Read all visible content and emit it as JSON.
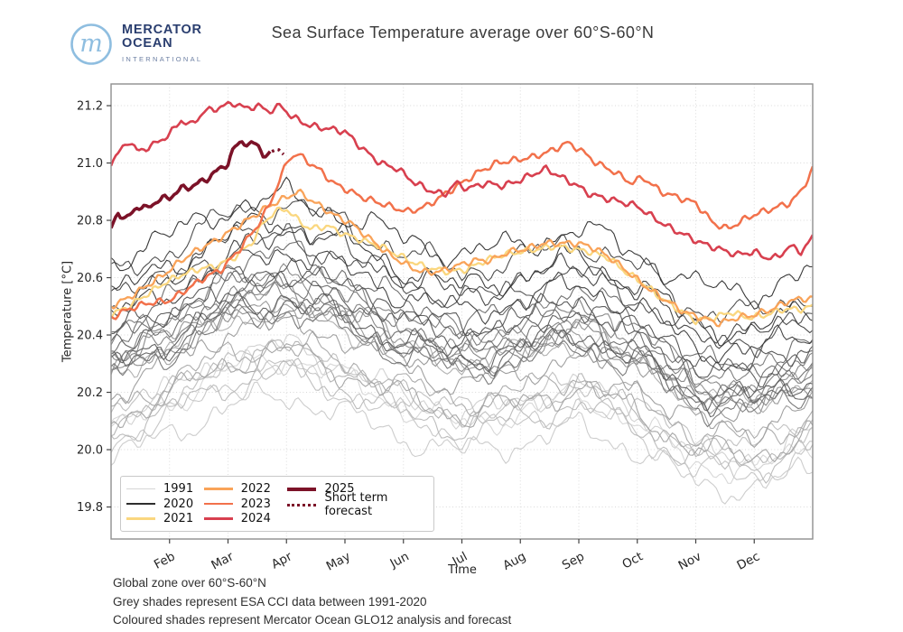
{
  "header": {
    "title": "Sea Surface Temperature average over 60°S-60°N"
  },
  "logo": {
    "line1": "MERCATOR",
    "line2": "OCEAN",
    "line3": "INTERNATIONAL",
    "mark": "m",
    "circle_color": "#8FBEE0",
    "text_color": "#2A3E6F",
    "subtext_color": "#6C7FA3"
  },
  "footer": {
    "lines": [
      "Global zone over 60°S-60°N",
      "Grey shades represent ESA CCI data between 1991-2020",
      "Coloured shades represent Mercator Ocean GLO12 analysis and forecast"
    ]
  },
  "chart_data": {
    "type": "line",
    "title": "Sea Surface Temperature average over 60°S-60°N",
    "xlabel": "Time",
    "ylabel": "Temperature [°C]",
    "x_tick_labels": [
      "Feb",
      "Mar",
      "Apr",
      "May",
      "Jun",
      "Jul",
      "Aug",
      "Sep",
      "Oct",
      "Nov",
      "Dec"
    ],
    "y_tick_labels": [
      "19.8",
      "20.0",
      "20.2",
      "20.4",
      "20.6",
      "20.8",
      "21.0",
      "21.2"
    ],
    "ylim": [
      19.69,
      21.28
    ],
    "x_unit": "calendar months, Jan 1 = 0, Dec 31 = 12",
    "grid": true,
    "legend_position": "lower left",
    "series": [
      {
        "name": "2021",
        "color": "#FAD77F",
        "lw": 2.3,
        "points": [
          [
            0,
            20.47
          ],
          [
            0.3,
            20.5
          ],
          [
            0.6,
            20.54
          ],
          [
            0.9,
            20.58
          ],
          [
            1.2,
            20.61
          ],
          [
            1.5,
            20.63
          ],
          [
            1.8,
            20.64
          ],
          [
            2.1,
            20.67
          ],
          [
            2.4,
            20.72
          ],
          [
            2.6,
            20.79
          ],
          [
            2.8,
            20.83
          ],
          [
            3.0,
            20.84
          ],
          [
            3.2,
            20.8
          ],
          [
            3.4,
            20.77
          ],
          [
            3.7,
            20.78
          ],
          [
            4.0,
            20.75
          ],
          [
            4.3,
            20.73
          ],
          [
            4.6,
            20.71
          ],
          [
            4.9,
            20.68
          ],
          [
            5.2,
            20.65
          ],
          [
            5.5,
            20.63
          ],
          [
            5.8,
            20.62
          ],
          [
            6.1,
            20.63
          ],
          [
            6.4,
            20.66
          ],
          [
            6.7,
            20.68
          ],
          [
            7.0,
            20.69
          ],
          [
            7.3,
            20.7
          ],
          [
            7.6,
            20.71
          ],
          [
            7.9,
            20.7
          ],
          [
            8.2,
            20.69
          ],
          [
            8.5,
            20.67
          ],
          [
            8.8,
            20.62
          ],
          [
            9.1,
            20.58
          ],
          [
            9.4,
            20.53
          ],
          [
            9.7,
            20.49
          ],
          [
            10.0,
            20.45
          ],
          [
            10.3,
            20.46
          ],
          [
            10.6,
            20.48
          ],
          [
            10.9,
            20.46
          ],
          [
            11.2,
            20.47
          ],
          [
            11.5,
            20.49
          ],
          [
            11.8,
            20.49
          ],
          [
            12,
            20.5
          ]
        ]
      },
      {
        "name": "2022",
        "color": "#F9A359",
        "lw": 2.3,
        "points": [
          [
            0,
            20.5
          ],
          [
            0.3,
            20.53
          ],
          [
            0.6,
            20.57
          ],
          [
            0.9,
            20.61
          ],
          [
            1.2,
            20.66
          ],
          [
            1.5,
            20.7
          ],
          [
            1.8,
            20.73
          ],
          [
            2.1,
            20.77
          ],
          [
            2.4,
            20.81
          ],
          [
            2.7,
            20.85
          ],
          [
            3.0,
            20.88
          ],
          [
            3.2,
            20.9
          ],
          [
            3.5,
            20.86
          ],
          [
            3.8,
            20.82
          ],
          [
            4.1,
            20.79
          ],
          [
            4.4,
            20.74
          ],
          [
            4.7,
            20.69
          ],
          [
            5.0,
            20.65
          ],
          [
            5.3,
            20.62
          ],
          [
            5.6,
            20.62
          ],
          [
            5.9,
            20.64
          ],
          [
            6.2,
            20.66
          ],
          [
            6.5,
            20.66
          ],
          [
            6.8,
            20.69
          ],
          [
            7.1,
            20.7
          ],
          [
            7.4,
            20.72
          ],
          [
            7.7,
            20.72
          ],
          [
            8.0,
            20.72
          ],
          [
            8.3,
            20.7
          ],
          [
            8.6,
            20.66
          ],
          [
            8.9,
            20.61
          ],
          [
            9.2,
            20.56
          ],
          [
            9.5,
            20.52
          ],
          [
            9.8,
            20.48
          ],
          [
            10.1,
            20.46
          ],
          [
            10.4,
            20.44
          ],
          [
            10.7,
            20.46
          ],
          [
            11.0,
            20.47
          ],
          [
            11.3,
            20.49
          ],
          [
            11.6,
            20.52
          ],
          [
            12,
            20.53
          ]
        ]
      },
      {
        "name": "2023",
        "color": "#F2714B",
        "lw": 2.5,
        "points": [
          [
            0,
            20.46
          ],
          [
            0.3,
            20.49
          ],
          [
            0.6,
            20.51
          ],
          [
            1.0,
            20.52
          ],
          [
            1.3,
            20.56
          ],
          [
            1.6,
            20.6
          ],
          [
            1.9,
            20.63
          ],
          [
            2.2,
            20.7
          ],
          [
            2.5,
            20.78
          ],
          [
            2.7,
            20.85
          ],
          [
            2.9,
            20.95
          ],
          [
            3.05,
            21.02
          ],
          [
            3.2,
            21.03
          ],
          [
            3.4,
            21.0
          ],
          [
            3.6,
            20.97
          ],
          [
            3.8,
            20.93
          ],
          [
            4.0,
            20.91
          ],
          [
            4.3,
            20.88
          ],
          [
            4.6,
            20.86
          ],
          [
            4.9,
            20.84
          ],
          [
            5.1,
            20.83
          ],
          [
            5.4,
            20.85
          ],
          [
            5.7,
            20.89
          ],
          [
            6.0,
            20.93
          ],
          [
            6.3,
            20.97
          ],
          [
            6.6,
            21.0
          ],
          [
            6.9,
            21.01
          ],
          [
            7.2,
            21.02
          ],
          [
            7.5,
            21.04
          ],
          [
            7.8,
            21.07
          ],
          [
            8.0,
            21.05
          ],
          [
            8.3,
            21.0
          ],
          [
            8.6,
            20.97
          ],
          [
            8.9,
            20.93
          ],
          [
            9.1,
            20.95
          ],
          [
            9.4,
            20.9
          ],
          [
            9.7,
            20.88
          ],
          [
            10.0,
            20.86
          ],
          [
            10.3,
            20.79
          ],
          [
            10.55,
            20.77
          ],
          [
            10.8,
            20.8
          ],
          [
            11.0,
            20.82
          ],
          [
            11.3,
            20.84
          ],
          [
            11.6,
            20.86
          ],
          [
            11.8,
            20.9
          ],
          [
            12,
            20.98
          ]
        ]
      },
      {
        "name": "2024",
        "color": "#D8404F",
        "lw": 2.6,
        "points": [
          [
            0,
            21.0
          ],
          [
            0.3,
            21.08
          ],
          [
            0.45,
            21.04
          ],
          [
            0.7,
            21.06
          ],
          [
            1,
            21.1
          ],
          [
            1.2,
            21.15
          ],
          [
            1.35,
            21.13
          ],
          [
            1.6,
            21.18
          ],
          [
            1.8,
            21.19
          ],
          [
            2.1,
            21.21
          ],
          [
            2.3,
            21.19
          ],
          [
            2.5,
            21.2
          ],
          [
            2.7,
            21.18
          ],
          [
            2.9,
            21.2
          ],
          [
            3.1,
            21.16
          ],
          [
            3.4,
            21.13
          ],
          [
            3.7,
            21.12
          ],
          [
            4.0,
            21.11
          ],
          [
            4.3,
            21.05
          ],
          [
            4.6,
            21.0
          ],
          [
            4.9,
            20.98
          ],
          [
            5.2,
            20.93
          ],
          [
            5.5,
            20.9
          ],
          [
            5.7,
            20.89
          ],
          [
            5.9,
            20.93
          ],
          [
            6.1,
            20.91
          ],
          [
            6.4,
            20.93
          ],
          [
            6.7,
            20.92
          ],
          [
            7.0,
            20.94
          ],
          [
            7.2,
            20.96
          ],
          [
            7.45,
            20.98
          ],
          [
            7.7,
            20.95
          ],
          [
            7.9,
            20.93
          ],
          [
            8.2,
            20.89
          ],
          [
            8.6,
            20.87
          ],
          [
            9.0,
            20.85
          ],
          [
            9.2,
            20.82
          ],
          [
            9.5,
            20.78
          ],
          [
            9.8,
            20.75
          ],
          [
            10.1,
            20.72
          ],
          [
            10.4,
            20.7
          ],
          [
            10.7,
            20.68
          ],
          [
            11.0,
            20.69
          ],
          [
            11.2,
            20.67
          ],
          [
            11.4,
            20.67
          ],
          [
            11.6,
            20.71
          ],
          [
            11.8,
            20.69
          ],
          [
            12,
            20.74
          ]
        ]
      },
      {
        "name": "2025",
        "color": "#7C1228",
        "lw": 3.6,
        "points": [
          [
            0,
            20.77
          ],
          [
            0.12,
            20.83
          ],
          [
            0.25,
            20.8
          ],
          [
            0.45,
            20.85
          ],
          [
            0.6,
            20.84
          ],
          [
            0.8,
            20.87
          ],
          [
            1.0,
            20.88
          ],
          [
            1.2,
            20.91
          ],
          [
            1.4,
            20.92
          ],
          [
            1.6,
            20.94
          ],
          [
            1.8,
            20.97
          ],
          [
            2.0,
            21.0
          ],
          [
            2.1,
            21.05
          ],
          [
            2.25,
            21.08
          ],
          [
            2.35,
            21.06
          ],
          [
            2.5,
            21.07
          ],
          [
            2.6,
            21.03
          ],
          [
            2.7,
            21.02
          ],
          [
            2.75,
            21.04
          ]
        ]
      },
      {
        "name": "Short term forecast",
        "color": "#7C1228",
        "lw": 3.4,
        "dash": "dotted",
        "points": [
          [
            2.75,
            21.04
          ],
          [
            2.85,
            21.05
          ],
          [
            2.95,
            21.03
          ]
        ]
      }
    ],
    "grey_ensemble": {
      "label": "ESA CCI data 1991-2020",
      "start_year": 1991,
      "end_year": 2020,
      "color_light": "#d6d6d6",
      "color_dark": "#2e2e2e",
      "lw": 1.1,
      "seasonal_shape": [
        0.0,
        0.09,
        0.2,
        0.24,
        0.17,
        0.08,
        0.02,
        0.06,
        0.12,
        0.03,
        -0.1,
        -0.12,
        -0.04
      ],
      "jan1_values": [
        20.06,
        20.1,
        19.97,
        20.03,
        20.12,
        20.05,
        20.1,
        20.28,
        20.15,
        20.1,
        20.2,
        20.26,
        20.3,
        20.28,
        20.33,
        20.3,
        20.38,
        20.25,
        20.34,
        20.42,
        20.28,
        20.3,
        20.38,
        20.4,
        20.5,
        20.6,
        20.52,
        20.46,
        20.54,
        20.66
      ]
    },
    "legend": {
      "columns": [
        [
          {
            "label": "1991",
            "color": "#d6d6d6",
            "lw": 1.6
          },
          {
            "label": "2020",
            "color": "#2e2e2e",
            "lw": 1.6
          },
          {
            "label": "2021",
            "color": "#FAD77F",
            "lw": 2.4
          }
        ],
        [
          {
            "label": "2022",
            "color": "#F9A359",
            "lw": 2.4
          },
          {
            "label": "2023",
            "color": "#F2714B",
            "lw": 2.4
          },
          {
            "label": "2024",
            "color": "#D8404F",
            "lw": 2.4
          }
        ],
        [
          {
            "label": "2025",
            "color": "#7C1228",
            "lw": 3.8
          },
          {
            "label": "Short term forecast",
            "color": "#7C1228",
            "lw": 3.5,
            "dash": "dotted"
          }
        ]
      ]
    }
  }
}
